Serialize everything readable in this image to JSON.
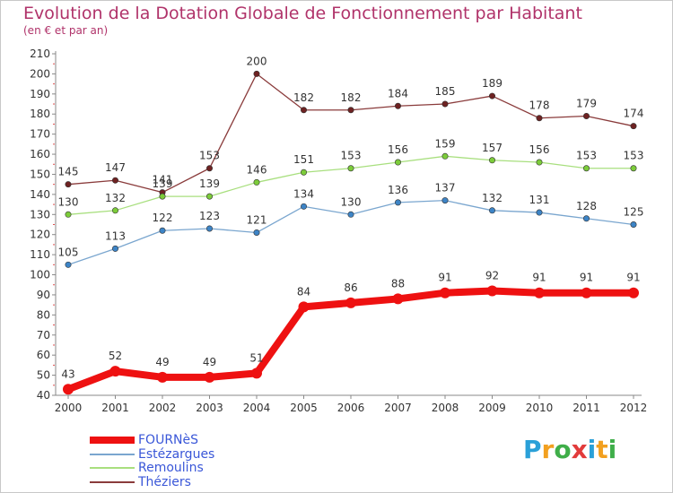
{
  "title": "Evolution de la Dotation Globale de Fonctionnement par Habitant",
  "subtitle": "(en € et par an)",
  "logo": {
    "text": "Proxiti",
    "letters": [
      "P",
      "r",
      "o",
      "x",
      "i",
      "t",
      "i"
    ],
    "colors": [
      "#2aa0d8",
      "#f2a020",
      "#3fae49",
      "#e23b3b",
      "#2aa0d8",
      "#f2a020",
      "#3fae49"
    ]
  },
  "chart_data": {
    "type": "line",
    "title": "Evolution de la Dotation Globale de Fonctionnement par Habitant",
    "subtitle": "(en € et par an)",
    "xlabel": "",
    "ylabel": "",
    "ylim": [
      40,
      210
    ],
    "ytick_step": 10,
    "grid": false,
    "legend_position": "bottom-left",
    "x": [
      "2000",
      "2001",
      "2002",
      "2003",
      "2004",
      "2005",
      "2006",
      "2007",
      "2008",
      "2009",
      "2010",
      "2011",
      "2012"
    ],
    "series": [
      {
        "name": "FOURNèS",
        "color": "#ee1111",
        "width": 8,
        "marker_color": "#ee1111",
        "values": [
          43,
          52,
          49,
          49,
          51,
          84,
          86,
          88,
          91,
          92,
          91,
          91,
          91
        ]
      },
      {
        "name": "Estézargues",
        "color": "#7aa6cf",
        "width": 1.3,
        "marker_color": "#3d84c6",
        "values": [
          105,
          113,
          122,
          123,
          121,
          134,
          130,
          136,
          137,
          132,
          131,
          128,
          125
        ]
      },
      {
        "name": "Remoulins",
        "color": "#a8df7e",
        "width": 1.3,
        "marker_color": "#7ccc3a",
        "values": [
          130,
          132,
          139,
          139,
          146,
          151,
          153,
          156,
          159,
          157,
          156,
          153,
          153
        ]
      },
      {
        "name": "Théziers",
        "color": "#8a3b3b",
        "width": 1.3,
        "marker_color": "#6e2222",
        "values": [
          145,
          147,
          141,
          153,
          200,
          182,
          182,
          184,
          185,
          189,
          178,
          179,
          174
        ]
      }
    ],
    "data_labels": {
      "FOURNèS": [
        "43",
        "52",
        "49",
        "49",
        "51",
        "84",
        "86",
        "88",
        "91",
        "92",
        "91",
        "91",
        "91"
      ],
      "Estézargues": [
        "105",
        "113",
        "122",
        "123",
        "121",
        "134",
        "130",
        "136",
        "137",
        "132",
        "131",
        "128",
        "125"
      ],
      "Remoulins": [
        "130",
        "132",
        "139",
        "139",
        "146",
        "151",
        "153",
        "156",
        "159",
        "157",
        "156",
        "153",
        "153"
      ],
      "Théziers": [
        "145",
        "147",
        "141",
        "153",
        "200",
        "182",
        "182",
        "184",
        "185",
        "189",
        "178",
        "179",
        "174"
      ]
    }
  }
}
